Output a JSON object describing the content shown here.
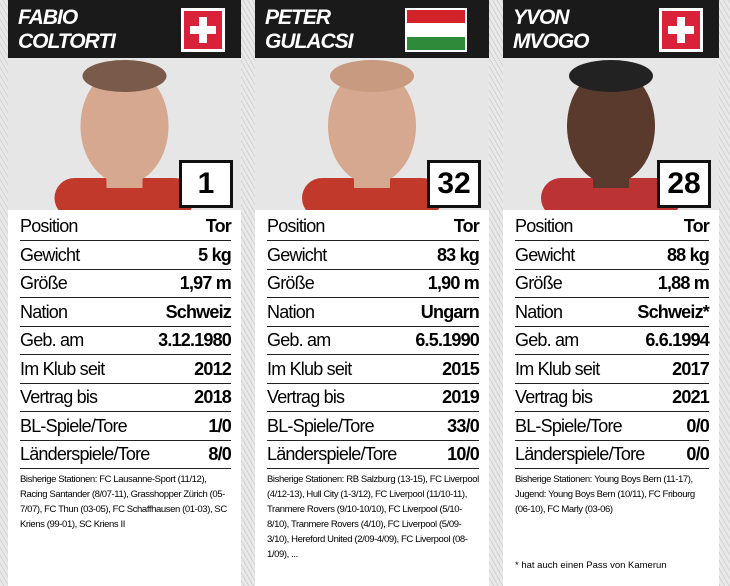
{
  "players": [
    {
      "first_name": "FABIO",
      "last_name": "COLTORTI",
      "flag": "switzerland",
      "number": 1,
      "rows": [
        {
          "label": "Position",
          "value": "Tor"
        },
        {
          "label": "Gewicht",
          "value": "5 kg"
        },
        {
          "label": "Größe",
          "value": "1,97 m"
        },
        {
          "label": "Nation",
          "value": "Schweiz"
        },
        {
          "label": "Geb. am",
          "value": "3.12.1980"
        },
        {
          "label": "Im Klub seit",
          "value": "2012"
        },
        {
          "label": "Vertrag bis",
          "value": "2018"
        },
        {
          "label": "BL-Spiele/Tore",
          "value": "1/0"
        },
        {
          "label": "Länderspiele/Tore",
          "value": "8/0"
        }
      ],
      "stations": "Bisherige Stationen: FC Lausanne-Sport (11/12), Racing Santander (8/07-11), Grasshopper Zürich (05-7/07), FC Thun (03-05), FC Schaffhausen (01-03), SC Kriens (99-01), SC Kriens II"
    },
    {
      "first_name": "PETER",
      "last_name": "GULACSI",
      "flag": "hungary",
      "number": 32,
      "rows": [
        {
          "label": "Position",
          "value": "Tor"
        },
        {
          "label": "Gewicht",
          "value": "83 kg"
        },
        {
          "label": "Größe",
          "value": "1,90 m"
        },
        {
          "label": "Nation",
          "value": "Ungarn"
        },
        {
          "label": "Geb. am",
          "value": "6.5.1990"
        },
        {
          "label": "Im Klub seit",
          "value": "2015"
        },
        {
          "label": "Vertrag bis",
          "value": "2019"
        },
        {
          "label": "BL-Spiele/Tore",
          "value": "33/0"
        },
        {
          "label": "Länderspiele/Tore",
          "value": "10/0"
        }
      ],
      "stations": "Bisherige Stationen: RB Salzburg (13-15), FC Liverpool (4/12-13), Hull City (1-3/12), FC Liverpool (11/10-11), Tranmere Rovers (9/10-10/10), FC Liverpool (5/10-8/10), Tranmere Rovers (4/10), FC Liverpool (5/09-3/10), Hereford United (2/09-4/09), FC Liverpool (08-1/09), ..."
    },
    {
      "first_name": "YVON",
      "last_name": "MVOGO",
      "flag": "switzerland",
      "number": 28,
      "rows": [
        {
          "label": "Position",
          "value": "Tor"
        },
        {
          "label": "Gewicht",
          "value": "88 kg"
        },
        {
          "label": "Größe",
          "value": "1,88 m"
        },
        {
          "label": "Nation",
          "value": "Schweiz*"
        },
        {
          "label": "Geb. am",
          "value": "6.6.1994"
        },
        {
          "label": "Im Klub seit",
          "value": "2017"
        },
        {
          "label": "Vertrag bis",
          "value": "2021"
        },
        {
          "label": "BL-Spiele/Tore",
          "value": "0/0"
        },
        {
          "label": "Länderspiele/Tore",
          "value": "0/0"
        }
      ],
      "stations": "Bisherige Stationen: Young Boys Bern (11-17), Jugend: Young Boys Bern (10/11), FC Fribourg (06-10), FC Marly (03-06)",
      "note": "* hat auch einen Pass von Kamerun"
    }
  ]
}
